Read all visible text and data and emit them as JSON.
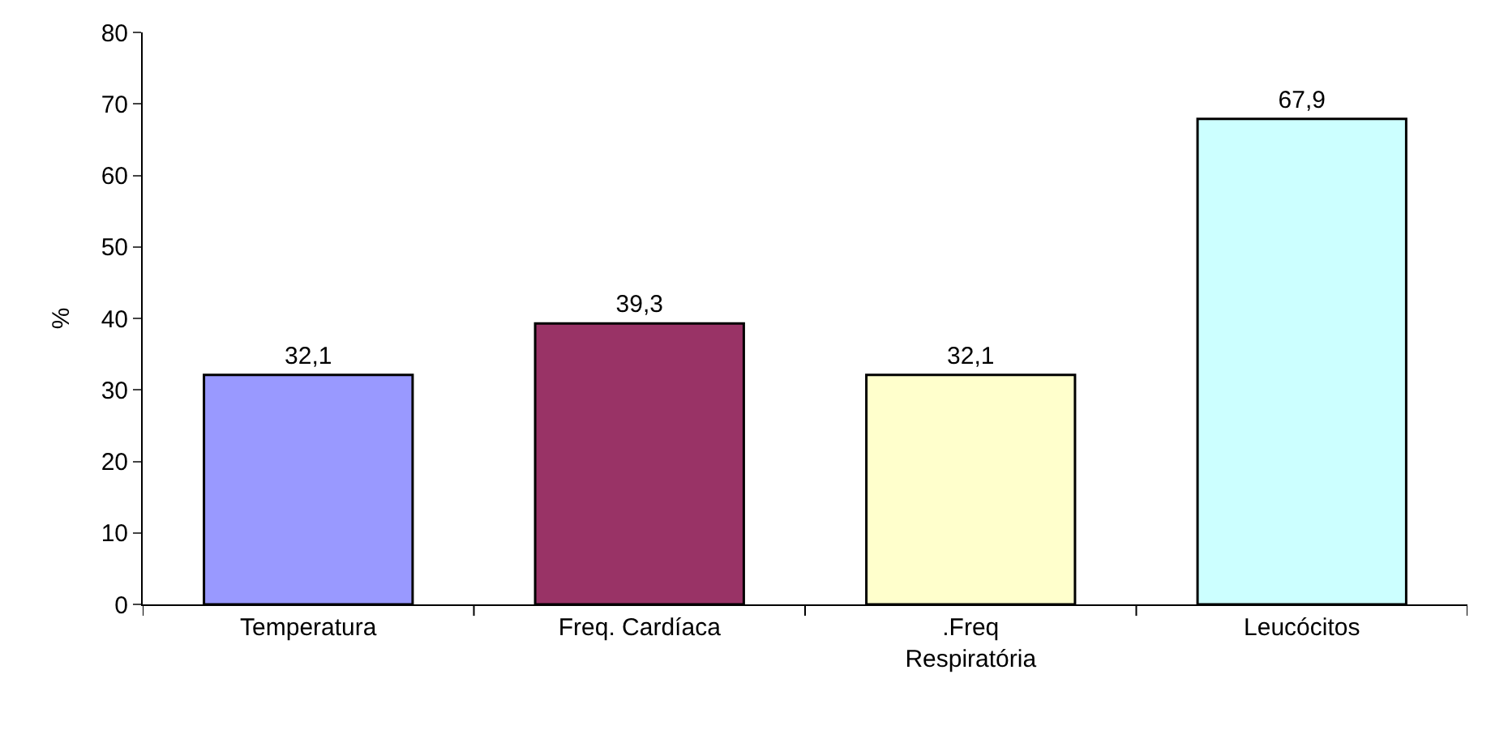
{
  "chart_data": {
    "type": "bar",
    "ylabel": "%",
    "categories": [
      "Temperatura",
      "Freq. Cardíaca",
      ".Freq Respiratória",
      "Leucócitos"
    ],
    "values": [
      32.1,
      39.3,
      32.1,
      67.9
    ],
    "value_labels": [
      "32,1",
      "39,3",
      "32,1",
      "67,9"
    ],
    "colors": [
      "#9999ff",
      "#993366",
      "#ffffcc",
      "#ccffff"
    ],
    "ylim": [
      0,
      80
    ],
    "yticks": [
      0,
      10,
      20,
      30,
      40,
      50,
      60,
      70,
      80
    ]
  }
}
